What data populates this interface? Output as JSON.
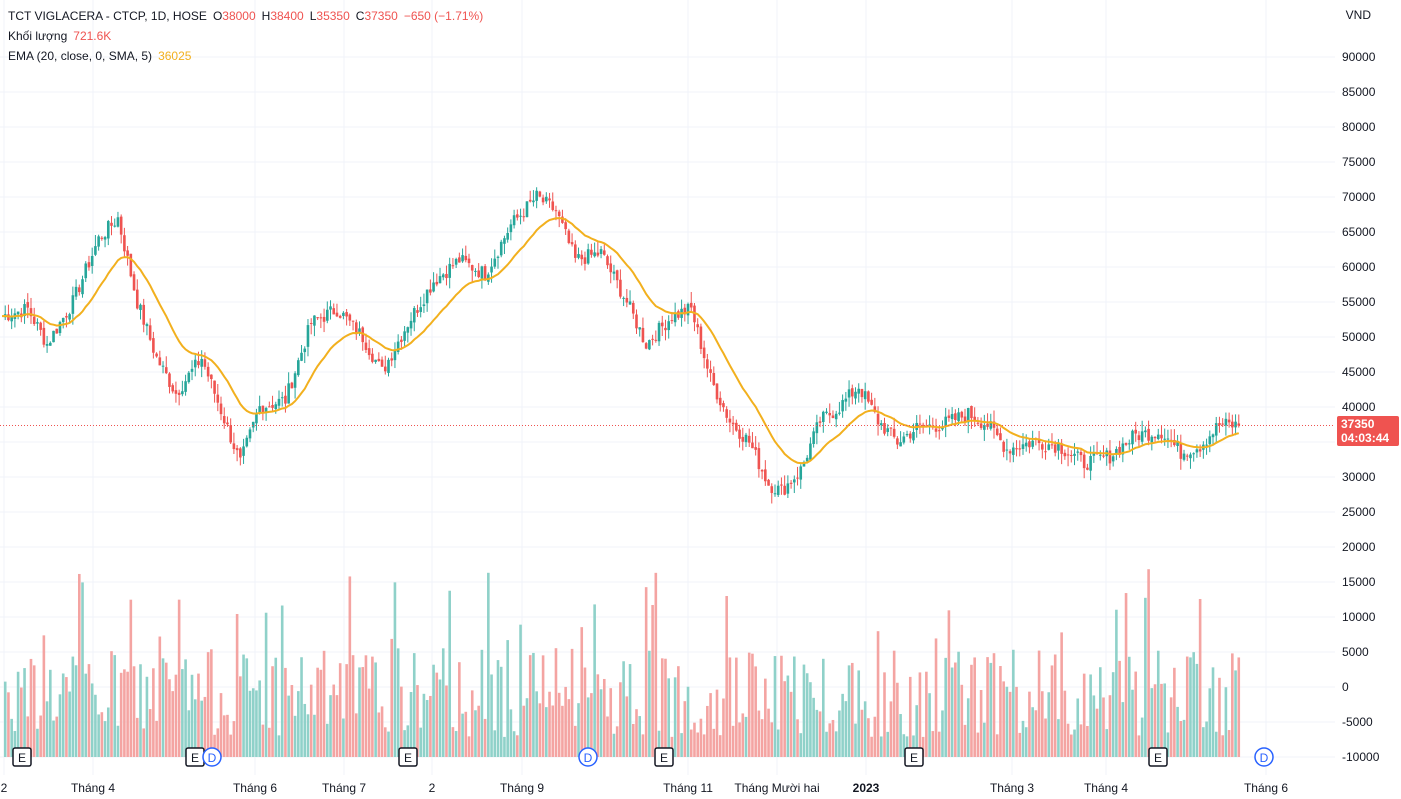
{
  "legend": {
    "symbol": "TCT VIGLACERA - CTCP, 1D, HOSE",
    "o_label": "O",
    "o_value": "38000",
    "h_label": "H",
    "h_value": "38400",
    "l_label": "L",
    "l_value": "35350",
    "c_label": "C",
    "c_value": "37350",
    "change": "−650 (−1.71%)",
    "volume_label": "Khối lượng",
    "volume_value": "721.6K",
    "ema_label": "EMA (20, close, 0, SMA, 5)",
    "ema_value": "36025"
  },
  "price_axis_unit": "VND",
  "price_tag": {
    "price": "37350",
    "countdown": "04:03:44"
  },
  "colors": {
    "up": "#26a69a",
    "down": "#ef5350",
    "up_vol": "#8fd1c9",
    "down_vol": "#f4a4a2",
    "ema": "#f2b01e",
    "grid": "#f0f3fa"
  },
  "chart_data": {
    "type": "candlestick",
    "title": "TCT VIGLACERA - CTCP, 1D, HOSE",
    "price_ticks": [
      90000,
      85000,
      80000,
      75000,
      70000,
      65000,
      60000,
      55000,
      50000,
      45000,
      40000,
      35000,
      30000,
      25000,
      20000,
      15000,
      10000,
      5000,
      0,
      -5000,
      -10000
    ],
    "price_tick_labels": [
      "90000",
      "85000",
      "80000",
      "75000",
      "70000",
      "65000",
      "60000",
      "55000",
      "50000",
      "45000",
      "40000",
      "35000",
      "30000",
      "25000",
      "20000",
      "15000",
      "10000",
      "5000",
      "0",
      "-5000",
      "-10000"
    ],
    "price_range": [
      -12000,
      97000
    ],
    "time_labels": [
      "2",
      "Tháng 4",
      "Tháng 6",
      "Tháng 7",
      "2",
      "Tháng 9",
      "Tháng 11",
      "Tháng Mười hai",
      "2023",
      "Tháng 3",
      "Tháng 4",
      "Tháng 6"
    ],
    "bold_time_labels": [
      "2023"
    ],
    "event_markers": [
      "E",
      "E",
      "D",
      "E",
      "D",
      "E",
      "E",
      "E",
      "D"
    ],
    "price_anchors": [
      [
        0,
        53000
      ],
      [
        8,
        54000
      ],
      [
        14,
        49000
      ],
      [
        22,
        55000
      ],
      [
        30,
        64000
      ],
      [
        36,
        67000
      ],
      [
        42,
        55000
      ],
      [
        48,
        47000
      ],
      [
        54,
        42000
      ],
      [
        62,
        47000
      ],
      [
        70,
        37000
      ],
      [
        74,
        32000
      ],
      [
        80,
        40000
      ],
      [
        88,
        41000
      ],
      [
        96,
        52000
      ],
      [
        104,
        54000
      ],
      [
        112,
        50000
      ],
      [
        118,
        45000
      ],
      [
        126,
        52000
      ],
      [
        134,
        58000
      ],
      [
        142,
        61000
      ],
      [
        150,
        59000
      ],
      [
        158,
        66000
      ],
      [
        166,
        70000
      ],
      [
        172,
        68000
      ],
      [
        178,
        61000
      ],
      [
        186,
        62000
      ],
      [
        194,
        55000
      ],
      [
        200,
        49000
      ],
      [
        208,
        53000
      ],
      [
        214,
        54000
      ],
      [
        220,
        44000
      ],
      [
        226,
        38000
      ],
      [
        232,
        35000
      ],
      [
        238,
        29000
      ],
      [
        242,
        28000
      ],
      [
        248,
        31000
      ],
      [
        254,
        38000
      ],
      [
        260,
        40000
      ],
      [
        266,
        43000
      ],
      [
        272,
        38000
      ],
      [
        278,
        35000
      ],
      [
        284,
        37000
      ],
      [
        292,
        37500
      ],
      [
        300,
        39000
      ],
      [
        306,
        37500
      ],
      [
        312,
        34000
      ],
      [
        320,
        35000
      ],
      [
        328,
        34500
      ],
      [
        336,
        32000
      ],
      [
        344,
        33000
      ],
      [
        352,
        36000
      ],
      [
        360,
        36500
      ],
      [
        366,
        33500
      ],
      [
        372,
        34500
      ],
      [
        378,
        37500
      ],
      [
        384,
        37350
      ]
    ],
    "volume_scale_note": "volume bars drawn in lower area",
    "last_close": 37350,
    "ema_last": 36025
  }
}
